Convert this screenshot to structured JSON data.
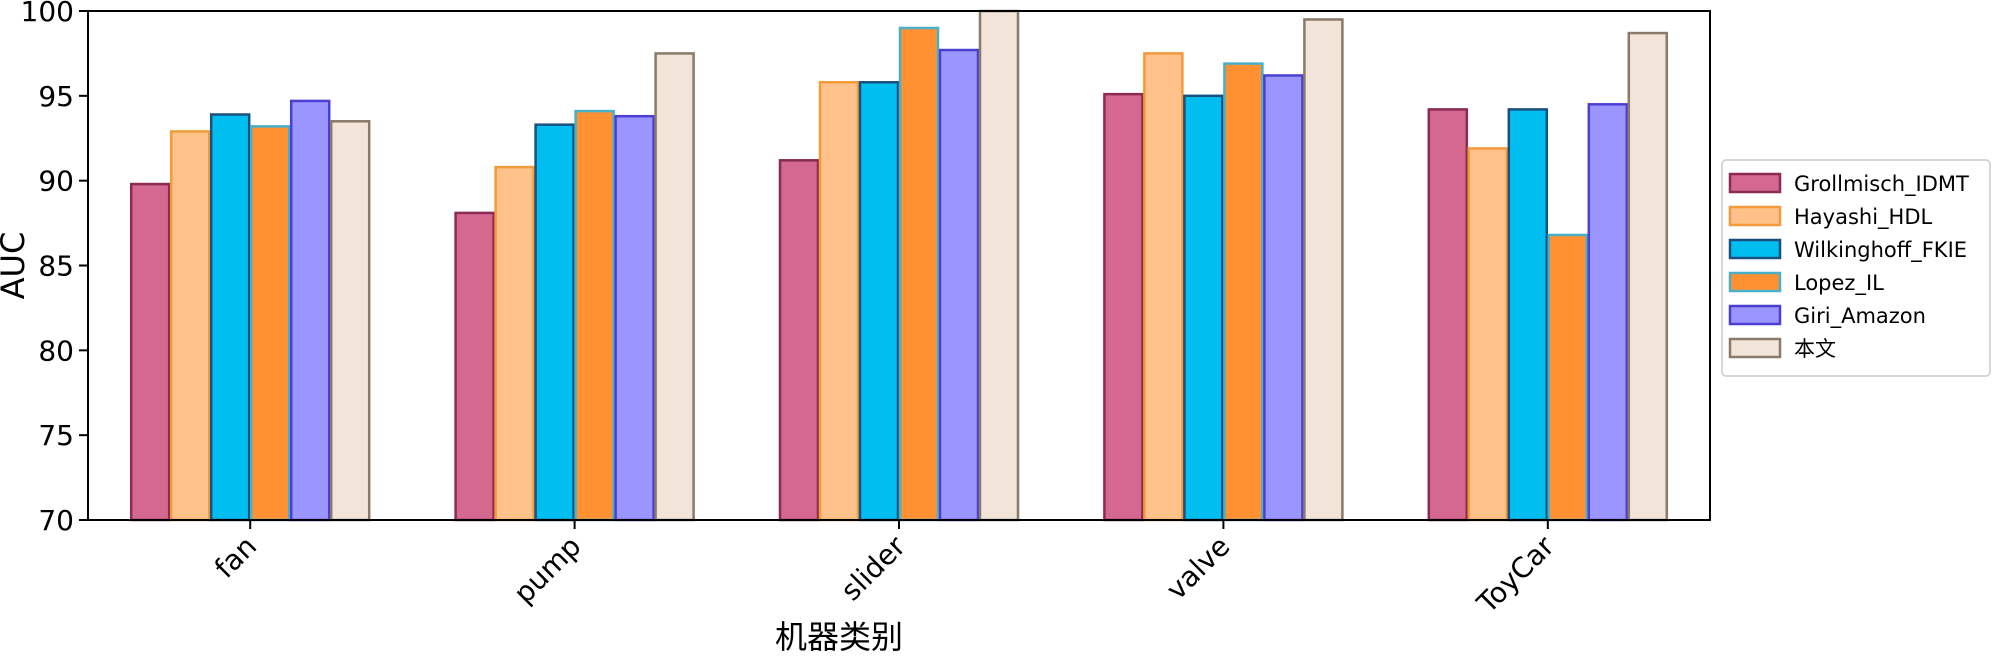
{
  "chart_data": {
    "type": "bar",
    "title": "",
    "xlabel": "机器类别",
    "ylabel": "AUC",
    "ylim": [
      70,
      100
    ],
    "yticks": [
      70,
      75,
      80,
      85,
      90,
      95,
      100
    ],
    "categories": [
      "fan",
      "pump",
      "slider",
      "valve",
      "ToyCar"
    ],
    "legend_position": "right",
    "grid": false,
    "series": [
      {
        "name": "Grollmisch_IDMT",
        "fill": "#d4688e",
        "stroke": "#8b2a52",
        "values": [
          89.8,
          88.1,
          91.2,
          95.1,
          94.2
        ]
      },
      {
        "name": "Hayashi_HDL",
        "fill": "#ffc28a",
        "stroke": "#f39a3a",
        "values": [
          92.9,
          90.8,
          95.8,
          97.5,
          91.9
        ]
      },
      {
        "name": "Wilkinghoff_FKIE",
        "fill": "#00bff0",
        "stroke": "#1a5080",
        "values": [
          93.9,
          93.3,
          95.8,
          95.0,
          94.2
        ]
      },
      {
        "name": "Lopez_IL",
        "fill": "#ff9133",
        "stroke": "#4ab0c8",
        "values": [
          93.2,
          94.1,
          99.0,
          96.9,
          86.8
        ]
      },
      {
        "name": "Giri_Amazon",
        "fill": "#9b96ff",
        "stroke": "#4a3fd0",
        "values": [
          94.7,
          93.8,
          97.7,
          96.2,
          94.5
        ]
      },
      {
        "name": "本文",
        "fill": "#f2e4d8",
        "stroke": "#8a7a68",
        "values": [
          93.5,
          97.5,
          100.0,
          99.5,
          98.7
        ]
      }
    ]
  }
}
